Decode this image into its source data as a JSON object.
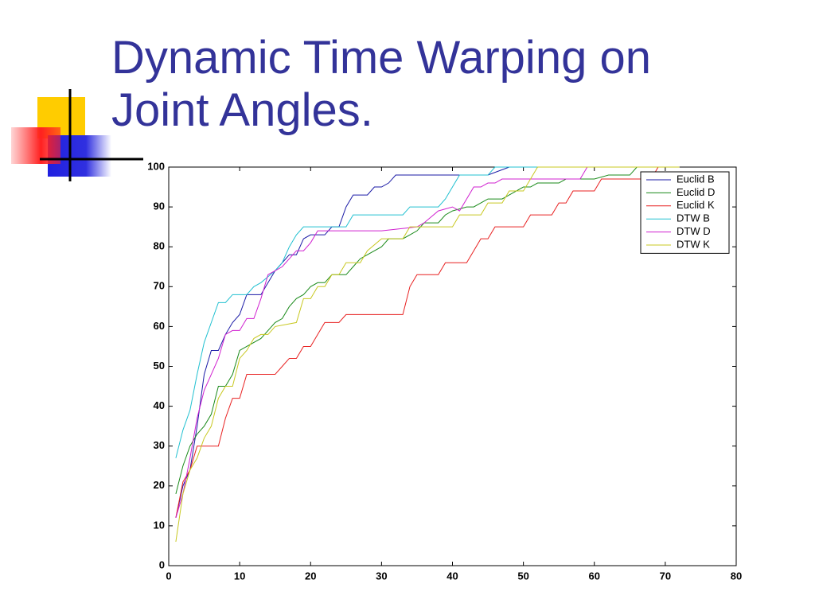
{
  "chart_data": {
    "type": "line",
    "title": "Dynamic Time Warping on Joint Angles.",
    "xlim": [
      0,
      80
    ],
    "ylim": [
      0,
      100
    ],
    "xticks": [
      0,
      10,
      20,
      30,
      40,
      50,
      60,
      70,
      80
    ],
    "yticks": [
      0,
      10,
      20,
      30,
      40,
      50,
      60,
      70,
      80,
      90,
      100
    ],
    "legend": "upper-right",
    "series": [
      {
        "name": "Euclid B",
        "color": "#1a1aa6",
        "x": [
          1,
          2,
          3,
          4,
          5,
          6,
          7,
          8,
          9,
          10,
          11,
          12,
          13,
          14,
          15,
          16,
          17,
          18,
          19,
          20,
          22,
          23,
          24,
          25,
          26,
          28,
          29,
          30,
          31,
          32,
          40,
          45,
          48,
          72
        ],
        "values": [
          12,
          20,
          24,
          35,
          48,
          54,
          54,
          58,
          61,
          63,
          68,
          68,
          68,
          71,
          74,
          76,
          78,
          78,
          82,
          83,
          83,
          85,
          85,
          90,
          93,
          93,
          95,
          95,
          96,
          98,
          98,
          98,
          100,
          100
        ]
      },
      {
        "name": "Euclid D",
        "color": "#1a8a1a",
        "x": [
          1,
          2,
          3,
          4,
          5,
          6,
          7,
          8,
          9,
          10,
          11,
          12,
          13,
          14,
          15,
          16,
          17,
          18,
          19,
          20,
          21,
          22,
          23,
          24,
          25,
          26,
          27,
          28,
          30,
          31,
          33,
          34,
          35,
          36,
          38,
          39,
          40,
          42,
          43,
          44,
          45,
          47,
          48,
          49,
          50,
          51,
          52,
          55,
          56,
          60,
          62,
          65,
          66,
          72
        ],
        "values": [
          18,
          25,
          30,
          33,
          35,
          38,
          45,
          45,
          48,
          54,
          55,
          56,
          57,
          59,
          61,
          62,
          65,
          67,
          68,
          70,
          71,
          71,
          73,
          73,
          73,
          75,
          77,
          78,
          80,
          82,
          82,
          83,
          84,
          86,
          86,
          88,
          89,
          90,
          90,
          91,
          92,
          92,
          93,
          94,
          95,
          95,
          96,
          96,
          97,
          97,
          98,
          98,
          100,
          100
        ]
      },
      {
        "name": "Euclid K",
        "color": "#e82020",
        "x": [
          1,
          2,
          3,
          4,
          5,
          7,
          8,
          9,
          10,
          11,
          12,
          15,
          16,
          17,
          18,
          19,
          20,
          21,
          22,
          24,
          25,
          33,
          34,
          35,
          38,
          39,
          42,
          43,
          44,
          45,
          46,
          50,
          51,
          54,
          55,
          56,
          57,
          60,
          61,
          62,
          68,
          69,
          71
        ],
        "values": [
          12,
          21,
          24,
          30,
          30,
          30,
          37,
          42,
          42,
          48,
          48,
          48,
          50,
          52,
          52,
          55,
          55,
          58,
          61,
          61,
          63,
          63,
          70,
          73,
          73,
          76,
          76,
          79,
          82,
          82,
          85,
          85,
          88,
          88,
          91,
          91,
          94,
          94,
          97,
          97,
          97,
          100,
          100
        ]
      },
      {
        "name": "DTW B",
        "color": "#20c0d0",
        "x": [
          1,
          2,
          3,
          4,
          5,
          6,
          7,
          8,
          9,
          11,
          12,
          13,
          15,
          16,
          17,
          18,
          19,
          25,
          26,
          28,
          33,
          34,
          38,
          39,
          40,
          41,
          45,
          46,
          72
        ],
        "values": [
          27,
          34,
          39,
          48,
          56,
          61,
          66,
          66,
          68,
          68,
          70,
          71,
          74,
          76,
          80,
          83,
          85,
          85,
          88,
          88,
          88,
          90,
          90,
          92,
          95,
          98,
          98,
          100,
          100
        ]
      },
      {
        "name": "DTW D",
        "color": "#d020d0",
        "x": [
          1,
          2,
          3,
          4,
          5,
          6,
          7,
          8,
          9,
          10,
          11,
          12,
          13,
          14,
          15,
          16,
          17,
          18,
          19,
          20,
          21,
          25,
          30,
          35,
          36,
          38,
          40,
          41,
          42,
          43,
          44,
          45,
          46,
          47,
          50,
          58,
          59,
          72
        ],
        "values": [
          12,
          18,
          27,
          37,
          44,
          48,
          52,
          58,
          59,
          59,
          62,
          62,
          67,
          73,
          74,
          75,
          77,
          79,
          79,
          81,
          84,
          84,
          84,
          85,
          86,
          89,
          90,
          89,
          92,
          95,
          95,
          96,
          96,
          97,
          97,
          97,
          100,
          100
        ]
      },
      {
        "name": "DTW K",
        "color": "#c8c820",
        "x": [
          1,
          2,
          3,
          4,
          5,
          6,
          7,
          8,
          9,
          10,
          11,
          12,
          13,
          14,
          15,
          18,
          19,
          20,
          21,
          22,
          23,
          24,
          25,
          27,
          28,
          30,
          33,
          34,
          40,
          41,
          44,
          45,
          47,
          48,
          50,
          51,
          52,
          72
        ],
        "values": [
          6,
          18,
          24,
          27,
          32,
          35,
          42,
          45,
          45,
          52,
          54,
          57,
          58,
          58,
          60,
          61,
          67,
          67,
          70,
          70,
          73,
          73,
          76,
          76,
          79,
          82,
          82,
          85,
          85,
          88,
          88,
          91,
          91,
          94,
          94,
          97,
          100,
          100
        ]
      }
    ]
  }
}
